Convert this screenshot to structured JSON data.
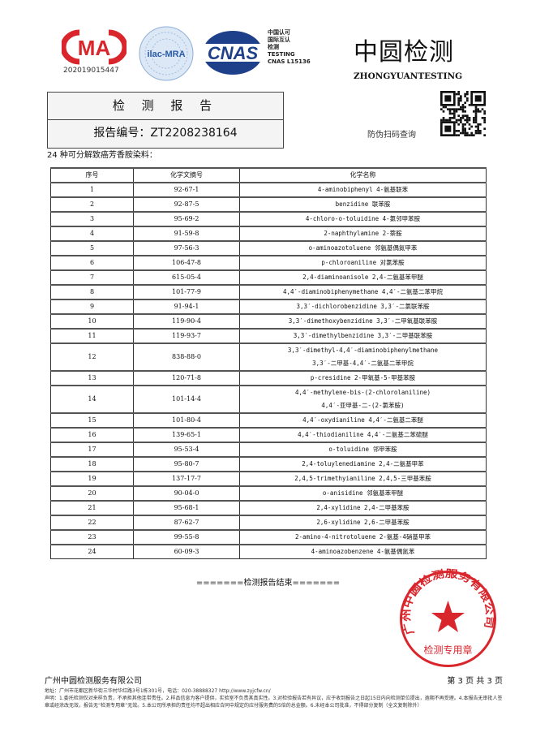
{
  "header": {
    "cma_logo": "CMA",
    "cma_number": "202019015447",
    "ilac_logo": "ilac-MRA",
    "cnas_logo": "CNAS",
    "cnas_text": [
      "中国认可",
      "国际互认",
      "检测",
      "TESTING",
      "CNAS L15136"
    ],
    "brand_cn": "中圆检测",
    "brand_en": "ZHONGYUANTESTING",
    "qr_label": "防伪扫码查询"
  },
  "report": {
    "title": "检 测 报 告",
    "number": "报告编号：ZT2208238164"
  },
  "intro": "24 种可分解致癌芳香胺染料：",
  "table": {
    "headers": [
      "序号",
      "化学文摘号",
      "化学名称"
    ],
    "rows": [
      [
        "1",
        "92-67-1",
        "4-aminobiphenyl 4-氨基联苯"
      ],
      [
        "2",
        "92-87-5",
        "benzidine 联苯胺"
      ],
      [
        "3",
        "95-69-2",
        "4-chloro-o-toluidine 4-氯邻甲苯胺"
      ],
      [
        "4",
        "91-59-8",
        "2-naphthylamine 2-萘胺"
      ],
      [
        "5",
        "97-56-3",
        "o-aminoazotoluene 邻氨基偶氮甲苯"
      ],
      [
        "6",
        "106-47-8",
        "p-chloroaniline 对氯苯胺"
      ],
      [
        "7",
        "615-05-4",
        "2,4-diaminoanisole 2,4-二氨基苯甲醚"
      ],
      [
        "8",
        "101-77-9",
        "4,4′-diaminobiphenymethane 4,4′-二氨基二苯甲烷"
      ],
      [
        "9",
        "91-94-1",
        "3,3′-dichlorobenzidine 3,3′-二氯联苯胺"
      ],
      [
        "10",
        "119-90-4",
        "3,3′-dimethoxybenzidine 3,3′-二甲氧基联苯胺"
      ],
      [
        "11",
        "119-93-7",
        "3,3′-dimethylbenzidine 3,3′-二甲基联苯胺"
      ],
      [
        "12",
        "838-88-0",
        "3,3′-dimethyl-4,4′-diaminobiphenylmethane",
        "3,3′-二甲基-4,4′-二氨基二苯甲烷"
      ],
      [
        "13",
        "120-71-8",
        "p-cresidine 2-甲氧基-5-甲基苯胺"
      ],
      [
        "14",
        "101-14-4",
        "4,4′-methylene-bis-(2-chlorolaniline)",
        "4,4′-亚甲基-二-(2-氯苯胺)"
      ],
      [
        "15",
        "101-80-4",
        "4,4′-oxydianiline 4,4′-二氨基二苯醚"
      ],
      [
        "16",
        "139-65-1",
        "4,4′-thiodianiline 4,4′-二氨基二苯硫醚"
      ],
      [
        "17",
        "95-53-4",
        "o-toluidine 邻甲苯胺"
      ],
      [
        "18",
        "95-80-7",
        "2,4-toluylenediamine 2,4-二氨基甲苯"
      ],
      [
        "19",
        "137-17-7",
        "2,4,5-trimethyianiline 2,4,5-三甲基苯胺"
      ],
      [
        "20",
        "90-04-0",
        "o-anisidine 邻氨基苯甲醚"
      ],
      [
        "21",
        "95-68-1",
        "2,4-xylidine 2,4-二甲基苯胺"
      ],
      [
        "22",
        "87-62-7",
        "2,6-xylidine 2,6-二甲基苯胺"
      ],
      [
        "23",
        "99-55-8",
        "2-amino-4-nitrotoluene 2-氨基-4硝基甲苯"
      ],
      [
        "24",
        "60-09-3",
        "4-aminoazobenzene 4-氨基偶氮苯"
      ]
    ]
  },
  "end_text": "=======检测报告结束=======",
  "stamp": {
    "ring_text": "广州中圆检测服务有限公司",
    "bottom_text": "检测专用章",
    "color": "#d9262c"
  },
  "footer": {
    "company": "广州中圆检测服务有限公司",
    "page": "第 3 页 共 3 页",
    "address": "地址：广州市花都区新华街三华村华红路3号1栋301号，电话：020-38888327 http://www.zyjcfw.cn/",
    "disclaimer": "声明：1.委托检测仅对来样负责，不承担其他连带责任。2.样品信息为客户提供，实验室不负责其真实性。3.对检验报告若有异议，应于收到报告之日起15日内向检测单位提出，逾期不再受理。4.本报告无审批人签章或经涂改无效，报告无“检测专用章”无效。5.本公司所承担的责任均不超出相应合同中规定的应付服务费的5倍的总金额。6.未经本公司批准，不得部分复制（全文复制除外）"
  }
}
